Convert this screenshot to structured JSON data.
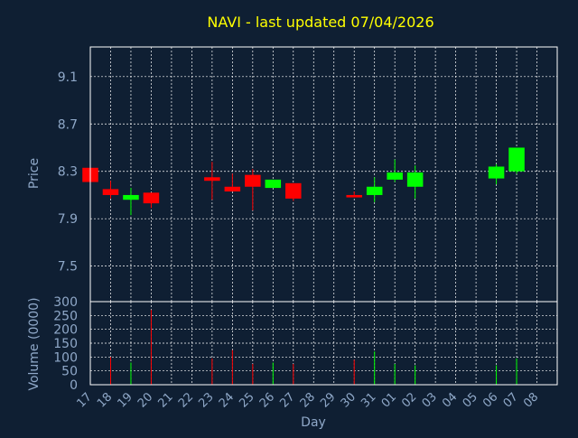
{
  "chart_data": {
    "type": "candlestick",
    "title": "NAVI - last updated 07/04/2026",
    "xlabel": "Day",
    "price_ylabel": "Price",
    "volume_ylabel": "Volume (0000)",
    "price_ylim": [
      7.2,
      9.35
    ],
    "price_ticks": [
      "9.1",
      "8.7",
      "8.3",
      "7.9",
      "7.5"
    ],
    "volume_ylim": [
      0,
      300
    ],
    "volume_ticks": [
      "300",
      "250",
      "200",
      "150",
      "100",
      "50",
      "0"
    ],
    "x_ticks": [
      "17",
      "18",
      "19",
      "20",
      "21",
      "22",
      "23",
      "24",
      "25",
      "26",
      "27",
      "28",
      "29",
      "30",
      "31",
      "01",
      "02",
      "03",
      "04",
      "05",
      "06",
      "07",
      "08"
    ],
    "grid": true,
    "colors": {
      "background": "#0f1f33",
      "text": "#8fa8c8",
      "title": "#ffff00",
      "up": "#00ff00",
      "down": "#ff0000",
      "grid": "#ffffff",
      "frame": "#ffffff"
    },
    "candles": [
      {
        "day": "17",
        "open": 8.33,
        "close": 8.21,
        "high": 8.33,
        "low": 8.21
      },
      {
        "day": "18",
        "open": 8.15,
        "close": 8.1,
        "high": 8.22,
        "low": 8.07
      },
      {
        "day": "19",
        "open": 8.06,
        "close": 8.1,
        "high": 8.16,
        "low": 7.93
      },
      {
        "day": "20",
        "open": 8.12,
        "close": 8.03,
        "high": 8.12,
        "low": 7.99
      },
      {
        "day": "23",
        "open": 8.25,
        "close": 8.22,
        "high": 8.38,
        "low": 8.06
      },
      {
        "day": "24",
        "open": 8.17,
        "close": 8.13,
        "high": 8.28,
        "low": 8.13
      },
      {
        "day": "25",
        "open": 8.27,
        "close": 8.17,
        "high": 8.32,
        "low": 7.97
      },
      {
        "day": "26",
        "open": 8.16,
        "close": 8.23,
        "high": 8.23,
        "low": 8.16
      },
      {
        "day": "27",
        "open": 8.2,
        "close": 8.07,
        "high": 8.2,
        "low": 8.05
      },
      {
        "day": "30",
        "open": 8.1,
        "close": 8.08,
        "high": 8.13,
        "low": 8.08
      },
      {
        "day": "31",
        "open": 8.1,
        "close": 8.17,
        "high": 8.25,
        "low": 8.04
      },
      {
        "day": "01",
        "open": 8.23,
        "close": 8.29,
        "high": 8.4,
        "low": 8.21
      },
      {
        "day": "02",
        "open": 8.17,
        "close": 8.29,
        "high": 8.35,
        "low": 8.07
      },
      {
        "day": "06",
        "open": 8.24,
        "close": 8.34,
        "high": 8.36,
        "low": 8.19
      },
      {
        "day": "07",
        "open": 8.3,
        "close": 8.5,
        "high": 8.5,
        "low": 8.28
      }
    ],
    "volume": [
      {
        "day": "17",
        "value": 0,
        "dir": "down"
      },
      {
        "day": "18",
        "value": 100,
        "dir": "down"
      },
      {
        "day": "19",
        "value": 80,
        "dir": "up"
      },
      {
        "day": "20",
        "value": 270,
        "dir": "down"
      },
      {
        "day": "23",
        "value": 95,
        "dir": "down"
      },
      {
        "day": "24",
        "value": 125,
        "dir": "down"
      },
      {
        "day": "25",
        "value": 75,
        "dir": "down"
      },
      {
        "day": "26",
        "value": 80,
        "dir": "up"
      },
      {
        "day": "27",
        "value": 75,
        "dir": "down"
      },
      {
        "day": "30",
        "value": 90,
        "dir": "down"
      },
      {
        "day": "31",
        "value": 120,
        "dir": "up"
      },
      {
        "day": "01",
        "value": 75,
        "dir": "up"
      },
      {
        "day": "02",
        "value": 70,
        "dir": "up"
      },
      {
        "day": "06",
        "value": 70,
        "dir": "up"
      },
      {
        "day": "07",
        "value": 95,
        "dir": "up"
      }
    ]
  }
}
